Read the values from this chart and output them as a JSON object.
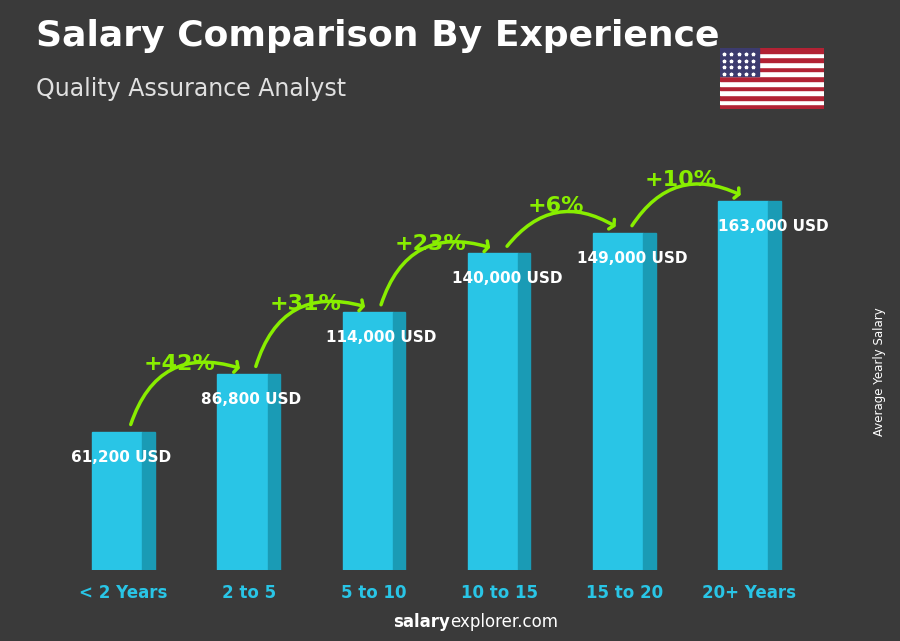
{
  "title": "Salary Comparison By Experience",
  "subtitle": "Quality Assurance Analyst",
  "categories": [
    "< 2 Years",
    "2 to 5",
    "5 to 10",
    "10 to 15",
    "15 to 20",
    "20+ Years"
  ],
  "values": [
    61200,
    86800,
    114000,
    140000,
    149000,
    163000
  ],
  "value_labels": [
    "61,200 USD",
    "86,800 USD",
    "114,000 USD",
    "140,000 USD",
    "149,000 USD",
    "163,000 USD"
  ],
  "pct_changes": [
    "+42%",
    "+31%",
    "+23%",
    "+6%",
    "+10%"
  ],
  "bar_color_light": "#29c5e6",
  "bar_color_dark": "#1a9bb5",
  "pct_color": "#88ee00",
  "value_label_color": "#ffffff",
  "title_color": "#ffffff",
  "subtitle_color": "#e0e0e0",
  "xtick_color": "#29c5e6",
  "ylabel_text": "Average Yearly Salary",
  "footer_bold": "salary",
  "footer_normal": "explorer.com",
  "background_color": "#3a3a3a",
  "ylim": [
    0,
    195000
  ],
  "title_fontsize": 26,
  "subtitle_fontsize": 17,
  "bar_width": 0.5,
  "value_label_fontsize": 11,
  "pct_fontsize": 16
}
